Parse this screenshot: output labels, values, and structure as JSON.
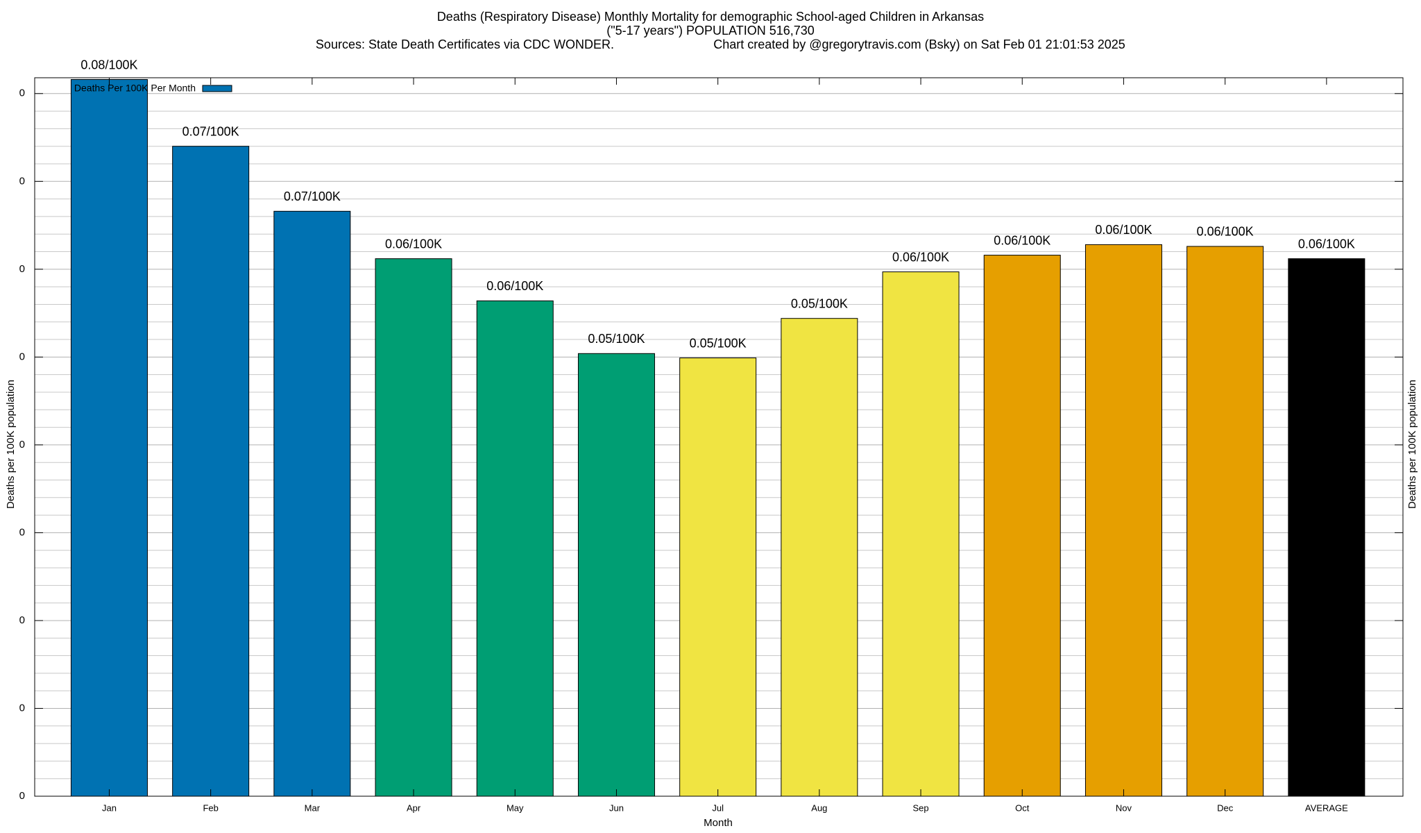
{
  "chart_data": {
    "type": "bar",
    "title": "Deaths (Respiratory Disease) Monthly Mortality for demographic School-aged Children in Arkansas",
    "subtitle": "(\"5-17 years\") POPULATION 516,730",
    "source": "Sources: State Death Certificates via CDC WONDER.",
    "credit": "Chart created by @gregorytravis.com (Bsky) on Sat Feb 01 21:01:53 2025",
    "xlabel": "Month",
    "ylabel": "Deaths per 100K population",
    "y2label": "Deaths per 100K population",
    "categories": [
      "Jan",
      "Feb",
      "Mar",
      "Apr",
      "May",
      "Jun",
      "Jul",
      "Aug",
      "Sep",
      "Oct",
      "Nov",
      "Dec",
      "AVERAGE"
    ],
    "series": [
      {
        "name": "Deaths Per 100K Per Month",
        "color": "#0072b2",
        "colors": [
          "#0072b2",
          "#0072b2",
          "#0072b2",
          "#009e73",
          "#009e73",
          "#009e73",
          "#f0e442",
          "#f0e442",
          "#f0e442",
          "#e69f00",
          "#e69f00",
          "#e69f00",
          "#000000"
        ],
        "values": [
          0.0816,
          0.074,
          0.0666,
          0.0612,
          0.0564,
          0.0504,
          0.0499,
          0.0544,
          0.0597,
          0.0616,
          0.0628,
          0.0626,
          0.0612
        ],
        "value_labels": [
          "0.08/100K",
          "0.07/100K",
          "0.07/100K",
          "0.06/100K",
          "0.06/100K",
          "0.05/100K",
          "0.05/100K",
          "0.05/100K",
          "0.06/100K",
          "0.06/100K",
          "0.06/100K",
          "0.06/100K",
          "0.06/100K"
        ]
      }
    ],
    "ylim": [
      0,
      0.0818
    ],
    "yticks": [
      0,
      {
        "value": 0.01,
        "label": "0"
      },
      {
        "value": 0.02,
        "label": "0"
      },
      {
        "value": 0.03,
        "label": "0"
      },
      {
        "value": 0.04,
        "label": "0"
      },
      {
        "value": 0.05,
        "label": "0"
      },
      {
        "value": 0.06,
        "label": "0"
      },
      {
        "value": 0.07,
        "label": "0"
      },
      {
        "value": 0.08,
        "label": "0"
      }
    ],
    "minor_yticks": [
      0.002,
      0.004,
      0.006,
      0.008,
      0.012,
      0.014,
      0.016,
      0.018,
      0.022,
      0.024,
      0.026,
      0.028,
      0.032,
      0.034,
      0.036,
      0.038,
      0.042,
      0.044,
      0.046,
      0.048,
      0.052,
      0.054,
      0.056,
      0.058,
      0.062,
      0.064,
      0.066,
      0.068,
      0.072,
      0.074,
      0.076,
      0.078
    ],
    "grid": true,
    "legend": "top-left"
  }
}
